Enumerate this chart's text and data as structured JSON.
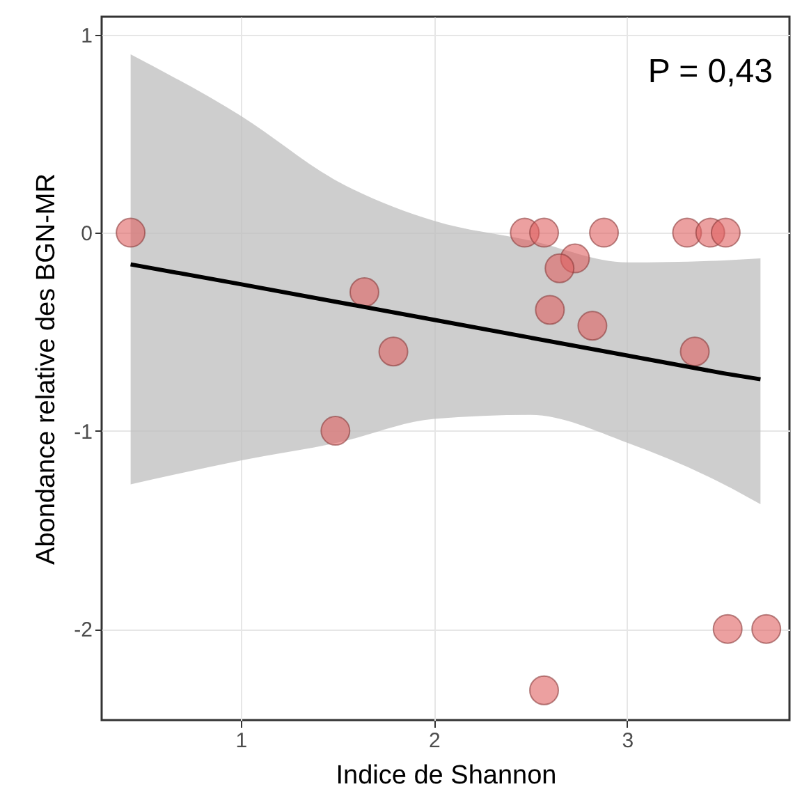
{
  "chart_data": {
    "type": "scatter",
    "xlabel": "Indice de Shannon",
    "ylabel": "Abondance relative des BGN-MR",
    "annotations": [
      "P = 0,43"
    ],
    "xlim": [
      0.28,
      3.84
    ],
    "ylim": [
      -2.46,
      1.09
    ],
    "xticks": [
      1,
      2,
      3
    ],
    "yticks": [
      -2,
      -1,
      0,
      1
    ],
    "grid": true,
    "marker": "circle",
    "series": [
      {
        "color": "#e06060",
        "x": [
          0.43,
          1.64,
          1.79,
          1.49,
          2.47,
          2.57,
          2.88,
          3.31,
          3.43,
          3.51,
          2.73,
          2.65,
          2.6,
          2.82,
          3.35,
          3.52,
          3.72,
          2.57
        ],
        "values": [
          0,
          -0.3,
          -0.6,
          -1.0,
          0,
          0,
          0,
          0,
          0,
          0,
          -0.13,
          -0.18,
          -0.39,
          -0.47,
          -0.6,
          -2.0,
          -2.0,
          -2.31
        ]
      },
      {
        "type": "line",
        "color": "#000000",
        "marker": "none",
        "x": [
          0.43,
          1,
          1.5,
          2,
          2.5,
          3,
          3.5,
          3.69
        ],
        "values": [
          -0.16,
          -0.26,
          -0.35,
          -0.44,
          -0.53,
          -0.62,
          -0.71,
          -0.74
        ],
        "lower": [
          -1.27,
          -1.15,
          -1.06,
          -0.94,
          -0.92,
          -1.06,
          -1.27,
          -1.37
        ],
        "upper": [
          0.9,
          0.59,
          0.26,
          0.06,
          -0.04,
          -0.15,
          -0.14,
          -0.13
        ]
      }
    ]
  }
}
